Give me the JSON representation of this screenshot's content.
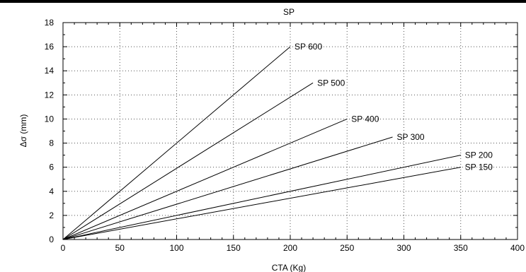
{
  "chart_data": {
    "type": "line",
    "title": "SP",
    "xlabel": "CTA (Kg)",
    "ylabel": "Δσ (mm)",
    "xlim": [
      0,
      400
    ],
    "ylim": [
      0,
      18
    ],
    "xticks": [
      0,
      50,
      100,
      150,
      200,
      250,
      300,
      350,
      400
    ],
    "yticks": [
      0,
      2,
      4,
      6,
      8,
      10,
      12,
      14,
      16,
      18
    ],
    "grid": true,
    "legend": "none",
    "series": [
      {
        "name": "SP 600",
        "x": [
          0,
          200
        ],
        "y": [
          0,
          16
        ]
      },
      {
        "name": "SP 500",
        "x": [
          0,
          220
        ],
        "y": [
          0,
          13
        ]
      },
      {
        "name": "SP 400",
        "x": [
          0,
          250
        ],
        "y": [
          0,
          10
        ]
      },
      {
        "name": "SP 300",
        "x": [
          0,
          290
        ],
        "y": [
          0,
          8.5
        ]
      },
      {
        "name": "SP 200",
        "x": [
          0,
          350
        ],
        "y": [
          0,
          7
        ]
      },
      {
        "name": "SP 150",
        "x": [
          0,
          350
        ],
        "y": [
          0,
          6
        ]
      }
    ]
  }
}
